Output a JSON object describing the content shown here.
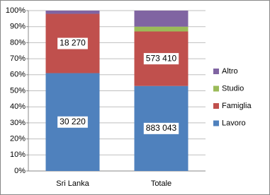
{
  "chart_data": {
    "type": "stacked_bar_100",
    "categories": [
      "Sri Lanka",
      "Totale"
    ],
    "series": [
      {
        "name": "Lavoro",
        "color": "#4f81bd",
        "values": [
          61,
          53
        ],
        "labels": [
          "30 220",
          "883 043"
        ]
      },
      {
        "name": "Famiglia",
        "color": "#c0504d",
        "values": [
          37,
          34
        ],
        "labels": [
          "18 270",
          "573 410"
        ]
      },
      {
        "name": "Studio",
        "color": "#9bbb59",
        "values": [
          0,
          3
        ]
      },
      {
        "name": "Altro",
        "color": "#8064a2",
        "values": [
          2,
          10
        ]
      }
    ],
    "ylim": [
      0,
      100
    ],
    "yticks": [
      {
        "value": 0,
        "label": "0%"
      },
      {
        "value": 10,
        "label": "10%"
      },
      {
        "value": 20,
        "label": "20%"
      },
      {
        "value": 30,
        "label": "30%"
      },
      {
        "value": 40,
        "label": "40%"
      },
      {
        "value": 50,
        "label": "50%"
      },
      {
        "value": 60,
        "label": "60%"
      },
      {
        "value": 70,
        "label": "70%"
      },
      {
        "value": 80,
        "label": "80%"
      },
      {
        "value": 90,
        "label": "90%"
      },
      {
        "value": 100,
        "label": "100%"
      }
    ],
    "grid": true,
    "legend": "right"
  }
}
